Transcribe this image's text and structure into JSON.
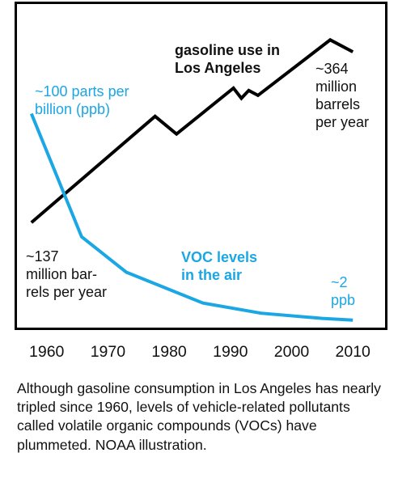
{
  "chart_data": {
    "type": "line",
    "xlim": [
      1957,
      2010.5
    ],
    "ylim": [
      0,
      100
    ],
    "x_ticks": [
      1960,
      1970,
      1980,
      1990,
      2000,
      2010
    ],
    "grid": false,
    "series": [
      {
        "name": "gasoline use in Los Angeles",
        "color": "#000000",
        "points": [
          [
            1957.5,
            34.5
          ],
          [
            1977.7,
            71.1
          ],
          [
            1981.2,
            65.0
          ],
          [
            1990.5,
            80.8
          ],
          [
            1991.8,
            77.3
          ],
          [
            1993.0,
            80.0
          ],
          [
            1994.5,
            78.3
          ],
          [
            2006.3,
            97.4
          ],
          [
            2010.0,
            93.3
          ]
        ]
      },
      {
        "name": "VOC levels in the air",
        "color": "#1aa7e3",
        "points": [
          [
            1957.5,
            72.0
          ],
          [
            1965.7,
            29.6
          ],
          [
            1973.0,
            17.4
          ],
          [
            1985.5,
            6.8
          ],
          [
            1995.0,
            3.3
          ],
          [
            2005.0,
            1.5
          ],
          [
            2010.0,
            0.9
          ]
        ]
      }
    ],
    "annotations": {
      "gas_title": [
        "gasoline use in",
        "Los Angeles"
      ],
      "gas_end": [
        "~364",
        "million",
        "barrels",
        "per year"
      ],
      "gas_start": [
        "~137",
        "million bar-",
        "rels per year"
      ],
      "voc_start": [
        "~100 parts per",
        "billion (ppb)"
      ],
      "voc_title": [
        "VOC levels",
        "in the air"
      ],
      "voc_end": [
        "~2",
        "ppb"
      ]
    }
  },
  "caption": "Although gasoline consumption in Los Angeles has nearly tripled since 1960, levels of vehicle-related pollutants called volatile organic compounds (VOCs) have plummeted. NOAA illustration."
}
